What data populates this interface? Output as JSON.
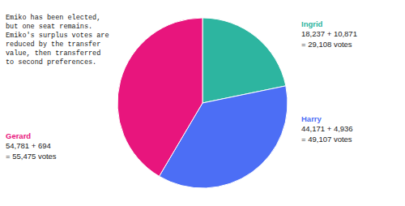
{
  "chart_data": {
    "type": "pie",
    "title": "Emiko has been elected,\nbut one seat remains.\nEmiko's surplus votes are\nreduced by the transfer\nvalue, then transferred\nto second preferences.",
    "categories": [
      "Ingrid",
      "Harry",
      "Gerard"
    ],
    "values": [
      29108,
      49107,
      55475
    ],
    "value_labels": [
      "18,237 + 10,871\n= 29,108 votes",
      "44,171 + 4,936\n= 49,107 votes",
      "54,781 + 694\n= 55,475 votes"
    ],
    "colors": [
      "#2db5a0",
      "#4c6ef5",
      "#e8157d"
    ]
  }
}
